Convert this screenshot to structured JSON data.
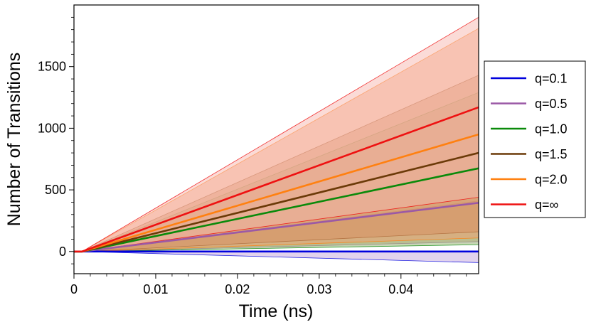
{
  "chart_data": {
    "type": "line",
    "title": "",
    "xlabel": "Time (ns)",
    "ylabel": "Number of Transitions",
    "xlim": [
      0,
      0.0495
    ],
    "ylim": [
      -180,
      2000
    ],
    "xticks": [
      0,
      0.01,
      0.02,
      0.03,
      0.04
    ],
    "xtick_labels": [
      "0",
      "0.01",
      "0.02",
      "0.03",
      "0.04"
    ],
    "yticks": [
      0,
      500,
      1000,
      1500
    ],
    "ytick_labels": [
      "0",
      "500",
      "1000",
      "1500"
    ],
    "grid": false,
    "legend_position": "right",
    "onset_x": 0.001,
    "series": [
      {
        "name": "q=0.1",
        "color": "#0000dd",
        "band_color": "#c6a8dc",
        "x": [
          0.001,
          0.0495
        ],
        "y": [
          0,
          0
        ],
        "upper": [
          0,
          0
        ],
        "lower": [
          0,
          -90
        ]
      },
      {
        "name": "q=0.5",
        "color": "#9b59a6",
        "band_color": "#c8a078",
        "x": [
          0.001,
          0.0495
        ],
        "y": [
          0,
          395
        ],
        "upper": [
          0,
          410
        ],
        "lower": [
          0,
          80
        ]
      },
      {
        "name": "q=1.0",
        "color": "#0a8a0a",
        "band_color": "#8fb06a",
        "x": [
          0.001,
          0.0495
        ],
        "y": [
          0,
          675
        ],
        "upper": [
          0,
          1290
        ],
        "lower": [
          0,
          55
        ]
      },
      {
        "name": "q=1.5",
        "color": "#6b3a08",
        "band_color": "#b87a50",
        "x": [
          0.001,
          0.0495
        ],
        "y": [
          0,
          800
        ],
        "upper": [
          0,
          1430
        ],
        "lower": [
          0,
          160
        ]
      },
      {
        "name": "q=2.0",
        "color": "#ff8010",
        "band_color": "#f4a070",
        "x": [
          0.001,
          0.0495
        ],
        "y": [
          0,
          950
        ],
        "upper": [
          0,
          1810
        ],
        "lower": [
          0,
          110
        ]
      },
      {
        "name": "q=∞",
        "color": "#ee1111",
        "band_color": "#f7b8b0",
        "x": [
          0.001,
          0.0495
        ],
        "y": [
          0,
          1170
        ],
        "upper": [
          0,
          1900
        ],
        "lower": [
          0,
          440
        ]
      }
    ]
  }
}
